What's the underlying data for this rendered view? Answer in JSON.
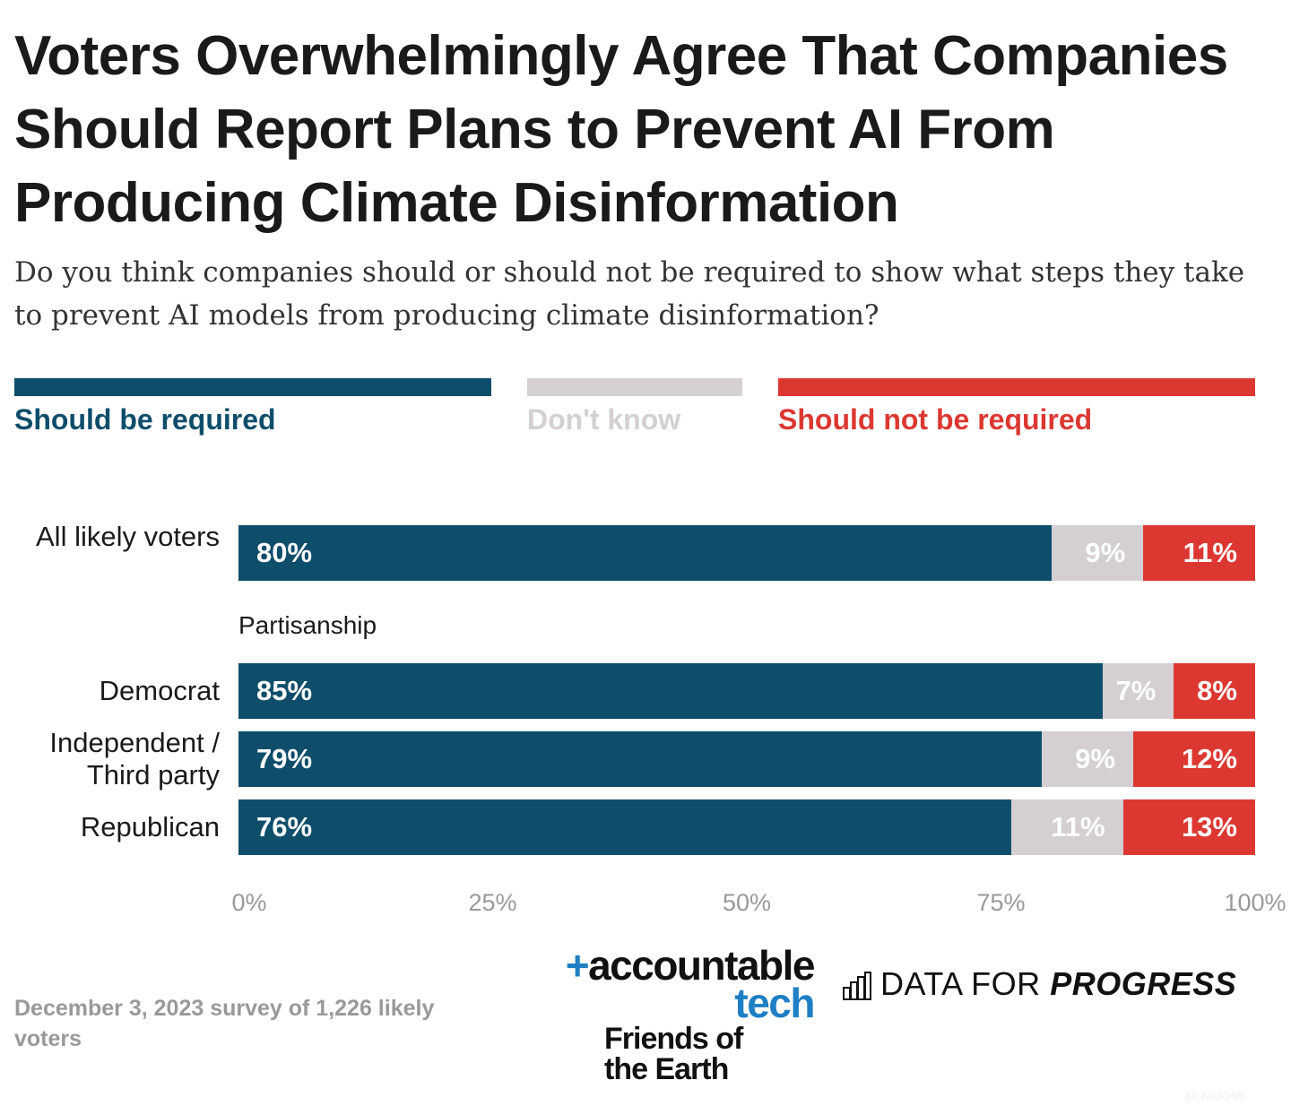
{
  "title": "Voters Overwhelmingly Agree That Companies Should Report Plans to Prevent AI From Producing Climate Disinformation",
  "subtitle": "Do you think companies should or should not be required to show what steps they take to prevent AI models from producing climate disinformation?",
  "colors": {
    "required": "#0e4e6b",
    "dont_know": "#d3cfd3",
    "not_required": "#dc3831"
  },
  "chart_data": {
    "type": "bar",
    "orientation": "horizontal",
    "stacked": true,
    "legend": "top",
    "xlim": [
      0,
      100
    ],
    "x_ticks": [
      "0%",
      "25%",
      "50%",
      "75%",
      "100%"
    ],
    "group_label": "Partisanship",
    "categories": [
      "All likely voters",
      "Democrat",
      "Independent / Third party",
      "Republican"
    ],
    "series": [
      {
        "name": "Should be required",
        "values": [
          80,
          85,
          79,
          76
        ]
      },
      {
        "name": "Don't know",
        "values": [
          9,
          7,
          9,
          11
        ]
      },
      {
        "name": "Should not be required",
        "values": [
          11,
          8,
          12,
          13
        ]
      }
    ]
  },
  "source": "December 3, 2023 survey of 1,226 likely voters",
  "logos": {
    "accountable_tech": "+accountable tech",
    "friends_of_earth": "Friends of the Earth",
    "data_for_progress": "DATA FOR PROGRESS"
  },
  "id_label": "ID: AD3QN5"
}
